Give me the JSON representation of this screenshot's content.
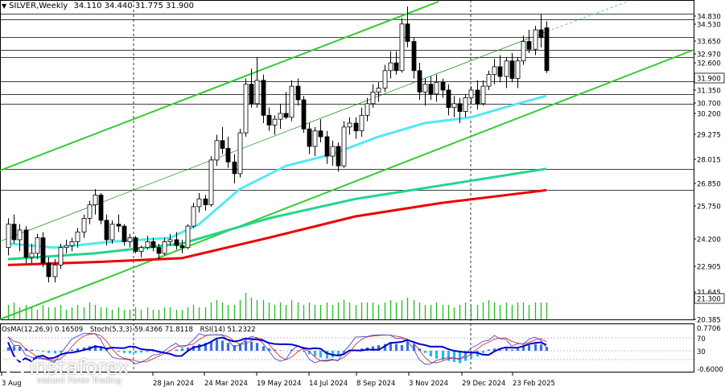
{
  "header": {
    "symbol": "SILVER,Weekly",
    "ohlc": "34.110 34.440 31.775 31.900"
  },
  "indicator_header": {
    "osma": "OsMA(12,26,9) 0.16509",
    "stoch": "Stoch(5,3,3) 59.4366 71.8118",
    "rsi": "RSI(14) 51.2322"
  },
  "logo": {
    "brand": "instaforex",
    "tagline": "Instant Forex Trading"
  },
  "colors": {
    "background": "#ffffff",
    "bull_candle": "#ffffff",
    "bear_candle": "#000000",
    "channel": "#33cc33",
    "ma_fast": "#55e8f0",
    "ma_mid": "#22d68c",
    "ma_slow": "#ee0000",
    "volume": "#22bb22",
    "osma_up": "#3b6fe0",
    "osma_down": "#29b6f6",
    "stoch_main": "#0000cc",
    "stoch_signal": "#cc3333",
    "rsi": "#2e8b2e"
  },
  "chart_data": {
    "type": "candlestick",
    "price_axis_ticks": [
      "34.830",
      "34.530",
      "33.650",
      "32.970",
      "32.600",
      "31.900",
      "31.350",
      "30.700",
      "30.200",
      "29.275",
      "28.015",
      "26.850",
      "25.750",
      "24.200",
      "22.905",
      "21.645",
      "21.300",
      "20.385"
    ],
    "price_levels": [
      34.83,
      34.53,
      33.65,
      32.97,
      32.6,
      31.35,
      30.7,
      30.2,
      26.85,
      25.75
    ],
    "last_price": "31.900",
    "volume_label": "21.300",
    "indicator_axis_labels": [
      "0.7706",
      "70",
      "30",
      "-0.6000"
    ],
    "indicator_levels": [
      70,
      30,
      0
    ],
    "x_labels": [
      "3 Aug",
      "28 Jan 2024",
      "24 Mar 2024",
      "19 May 2024",
      "14 Jul 2024",
      "8 Sep 2024",
      "3 Nov 2024",
      "29 Dec 2024",
      "23 Feb 2025"
    ],
    "period_separators": [
      "1 Jan 2024",
      "1 Jan 2025"
    ],
    "ylim": [
      20.385,
      36.0
    ],
    "candles": [
      [
        22.8,
        24.3,
        22.4,
        24.0
      ],
      [
        24.0,
        24.5,
        23.0,
        23.2
      ],
      [
        23.2,
        24.0,
        22.6,
        23.7
      ],
      [
        23.7,
        23.9,
        22.0,
        22.3
      ],
      [
        22.3,
        23.0,
        22.0,
        22.5
      ],
      [
        22.5,
        23.5,
        22.2,
        23.3
      ],
      [
        23.3,
        23.6,
        21.8,
        22.0
      ],
      [
        22.0,
        22.3,
        21.0,
        21.3
      ],
      [
        21.3,
        22.2,
        21.0,
        21.9
      ],
      [
        21.9,
        23.0,
        21.7,
        22.8
      ],
      [
        22.8,
        23.2,
        22.5,
        22.9
      ],
      [
        22.9,
        23.3,
        22.6,
        23.1
      ],
      [
        23.1,
        23.8,
        22.8,
        23.6
      ],
      [
        23.6,
        24.5,
        23.3,
        24.3
      ],
      [
        24.3,
        25.2,
        24.0,
        25.0
      ],
      [
        25.0,
        25.8,
        24.5,
        25.5
      ],
      [
        25.5,
        25.6,
        24.0,
        24.2
      ],
      [
        24.2,
        24.5,
        22.9,
        23.2
      ],
      [
        23.2,
        24.2,
        23.0,
        24.0
      ],
      [
        24.0,
        24.5,
        23.6,
        23.9
      ],
      [
        23.9,
        24.0,
        22.9,
        23.1
      ],
      [
        23.1,
        23.5,
        22.8,
        23.3
      ],
      [
        23.3,
        23.4,
        22.5,
        22.6
      ],
      [
        22.6,
        22.9,
        22.3,
        22.8
      ],
      [
        22.8,
        23.4,
        22.7,
        23.1
      ],
      [
        23.1,
        23.3,
        22.6,
        22.8
      ],
      [
        22.8,
        23.0,
        22.2,
        22.5
      ],
      [
        22.5,
        23.3,
        22.4,
        23.1
      ],
      [
        23.1,
        23.5,
        22.9,
        23.2
      ],
      [
        23.2,
        23.6,
        22.7,
        22.9
      ],
      [
        22.9,
        23.2,
        22.5,
        22.8
      ],
      [
        22.8,
        24.0,
        22.7,
        23.9
      ],
      [
        23.9,
        25.1,
        23.8,
        24.9
      ],
      [
        24.9,
        25.6,
        24.6,
        25.3
      ],
      [
        25.3,
        25.5,
        24.7,
        25.0
      ],
      [
        25.0,
        27.5,
        24.9,
        27.3
      ],
      [
        27.3,
        28.6,
        27.0,
        28.3
      ],
      [
        28.3,
        29.0,
        27.6,
        27.9
      ],
      [
        27.9,
        28.5,
        26.9,
        27.2
      ],
      [
        27.2,
        27.6,
        26.1,
        26.6
      ],
      [
        26.6,
        28.9,
        26.4,
        28.7
      ],
      [
        28.7,
        31.5,
        28.5,
        31.2
      ],
      [
        31.2,
        32.0,
        30.0,
        30.2
      ],
      [
        30.2,
        32.6,
        30.0,
        31.4
      ],
      [
        31.4,
        31.7,
        29.2,
        29.6
      ],
      [
        29.6,
        30.0,
        28.8,
        29.1
      ],
      [
        29.1,
        29.6,
        28.6,
        29.4
      ],
      [
        29.4,
        30.2,
        28.9,
        29.7
      ],
      [
        29.7,
        30.8,
        29.4,
        29.5
      ],
      [
        29.5,
        31.4,
        29.3,
        31.1
      ],
      [
        31.1,
        31.5,
        30.1,
        30.4
      ],
      [
        30.4,
        30.6,
        28.7,
        28.9
      ],
      [
        28.9,
        29.2,
        27.6,
        28.0
      ],
      [
        28.0,
        29.0,
        27.5,
        28.8
      ],
      [
        28.8,
        29.4,
        28.2,
        28.5
      ],
      [
        28.5,
        28.8,
        27.1,
        27.5
      ],
      [
        27.5,
        28.3,
        27.0,
        28.0
      ],
      [
        28.0,
        28.2,
        26.7,
        27.0
      ],
      [
        27.0,
        29.3,
        26.9,
        29.0
      ],
      [
        29.0,
        29.5,
        28.6,
        29.2
      ],
      [
        29.2,
        29.5,
        28.4,
        28.8
      ],
      [
        28.8,
        30.0,
        28.5,
        29.6
      ],
      [
        29.6,
        30.5,
        29.3,
        30.2
      ],
      [
        30.2,
        31.2,
        30.0,
        30.8
      ],
      [
        30.8,
        31.3,
        30.3,
        31.0
      ],
      [
        31.0,
        32.2,
        30.8,
        31.9
      ],
      [
        31.9,
        32.9,
        31.5,
        32.3
      ],
      [
        32.3,
        32.9,
        31.7,
        31.9
      ],
      [
        31.9,
        34.6,
        31.8,
        34.3
      ],
      [
        34.3,
        35.2,
        33.1,
        33.4
      ],
      [
        33.4,
        33.6,
        31.5,
        31.9
      ],
      [
        31.9,
        32.3,
        30.4,
        30.8
      ],
      [
        30.8,
        31.5,
        30.1,
        31.2
      ],
      [
        31.2,
        31.6,
        30.4,
        30.7
      ],
      [
        30.7,
        31.7,
        30.3,
        31.3
      ],
      [
        31.3,
        31.5,
        30.5,
        30.9
      ],
      [
        30.9,
        31.2,
        29.6,
        30.0
      ],
      [
        30.0,
        30.6,
        29.5,
        30.2
      ],
      [
        30.2,
        30.5,
        29.2,
        29.8
      ],
      [
        29.8,
        30.7,
        29.5,
        30.5
      ],
      [
        30.5,
        31.1,
        30.2,
        30.9
      ],
      [
        30.9,
        31.4,
        29.9,
        30.2
      ],
      [
        30.2,
        31.4,
        30.1,
        31.1
      ],
      [
        31.1,
        31.9,
        30.9,
        31.7
      ],
      [
        31.7,
        32.5,
        31.2,
        32.1
      ],
      [
        32.1,
        32.7,
        31.3,
        31.6
      ],
      [
        31.6,
        32.6,
        31.0,
        32.4
      ],
      [
        32.4,
        32.8,
        31.3,
        31.5
      ],
      [
        31.5,
        32.6,
        31.0,
        32.4
      ],
      [
        32.4,
        33.7,
        32.2,
        33.4
      ],
      [
        33.4,
        34.0,
        32.8,
        33.0
      ],
      [
        33.0,
        34.2,
        32.7,
        34.0
      ],
      [
        34.0,
        34.8,
        33.1,
        33.6
      ],
      [
        34.1,
        34.44,
        31.775,
        31.9
      ]
    ],
    "ma_fast": [
      [
        0,
        23.0
      ],
      [
        8,
        22.8
      ],
      [
        18,
        23.1
      ],
      [
        28,
        23.3
      ],
      [
        33,
        24.0
      ],
      [
        40,
        25.8
      ],
      [
        48,
        27.0
      ],
      [
        56,
        27.6
      ],
      [
        64,
        28.5
      ],
      [
        72,
        29.2
      ],
      [
        80,
        29.5
      ],
      [
        88,
        30.2
      ],
      [
        93,
        30.6
      ]
    ],
    "ma_mid": [
      [
        0,
        22.2
      ],
      [
        15,
        22.5
      ],
      [
        30,
        23.0
      ],
      [
        45,
        24.3
      ],
      [
        60,
        25.3
      ],
      [
        75,
        26.0
      ],
      [
        93,
        26.85
      ]
    ],
    "ma_slow": [
      [
        0,
        21.9
      ],
      [
        15,
        22.05
      ],
      [
        30,
        22.25
      ],
      [
        45,
        23.3
      ],
      [
        60,
        24.4
      ],
      [
        75,
        25.1
      ],
      [
        93,
        25.75
      ]
    ],
    "volume": [
      6,
      7,
      5,
      6,
      5,
      4,
      6,
      5,
      5,
      6,
      4,
      5,
      6,
      5,
      7,
      6,
      5,
      5,
      4,
      5,
      4,
      4,
      5,
      4,
      5,
      4,
      4,
      5,
      5,
      4,
      4,
      5,
      6,
      5,
      5,
      7,
      8,
      7,
      6,
      6,
      8,
      11,
      9,
      8,
      8,
      7,
      6,
      7,
      6,
      8,
      7,
      6,
      7,
      6,
      6,
      7,
      6,
      7,
      8,
      7,
      6,
      7,
      7,
      7,
      6,
      7,
      8,
      7,
      8,
      9,
      8,
      7,
      6,
      6,
      7,
      6,
      6,
      5,
      6,
      7,
      6,
      6,
      7,
      8,
      7,
      6,
      7,
      6,
      7,
      7,
      6,
      7,
      7,
      7
    ],
    "osma": [
      0.15,
      0.2,
      0.18,
      0.1,
      0.05,
      0.02,
      -0.05,
      -0.1,
      -0.12,
      -0.08,
      0.0,
      0.05,
      0.1,
      0.15,
      0.2,
      0.25,
      0.2,
      0.1,
      0.0,
      -0.05,
      -0.1,
      -0.12,
      -0.1,
      -0.08,
      -0.05,
      -0.03,
      -0.02,
      0.0,
      0.02,
      0.05,
      0.1,
      0.15,
      0.22,
      0.3,
      0.35,
      0.42,
      0.5,
      0.45,
      0.35,
      0.25,
      0.3,
      0.45,
      0.4,
      0.35,
      0.2,
      0.1,
      0.05,
      0.02,
      0.0,
      0.05,
      0.02,
      -0.05,
      -0.15,
      -0.25,
      -0.3,
      -0.35,
      -0.3,
      -0.25,
      -0.1,
      0.0,
      0.05,
      0.1,
      0.15,
      0.2,
      0.25,
      0.3,
      0.35,
      0.3,
      0.25,
      0.4,
      0.3,
      0.1,
      -0.1,
      -0.25,
      -0.35,
      -0.4,
      -0.45,
      -0.5,
      -0.55,
      -0.45,
      -0.35,
      -0.25,
      -0.1,
      0.05,
      0.1,
      0.05,
      0.1,
      0.05,
      0.1,
      0.2,
      0.25,
      0.3,
      0.28,
      0.17
    ]
  }
}
